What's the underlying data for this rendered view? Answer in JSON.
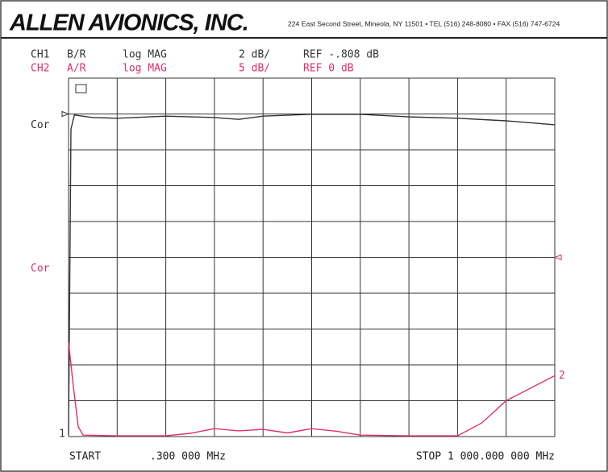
{
  "header": {
    "company": "ALLEN AVIONICS, INC.",
    "address": "224 East Second Street, Mineola, NY 11501 • TEL (516) 248-8080 • FAX (516) 747-6724"
  },
  "chart_data": {
    "type": "line",
    "xlim": [
      0,
      10
    ],
    "ylim": [
      0,
      10
    ],
    "grid_divisions": [
      10,
      10
    ],
    "start_label": "START",
    "start_freq": ".300 000 MHz",
    "stop_label": "STOP 1 000.000 000 MHz",
    "series": [
      {
        "name": "CH1",
        "measurement": "B/R",
        "format": "log MAG",
        "scale": "2 dB/",
        "reference": "REF -.808 dB",
        "trace_label": "Cor",
        "marker_label": "1",
        "color": "#333333",
        "ref_position": 9,
        "ref_side": "left",
        "x": [
          0,
          0.05,
          0.12,
          0.5,
          1,
          2,
          3,
          3.5,
          4,
          5,
          6,
          7,
          8,
          9,
          10
        ],
        "values": [
          0.05,
          8.58,
          8.97,
          8.9,
          8.88,
          8.94,
          8.9,
          8.85,
          8.94,
          8.99,
          8.99,
          8.92,
          8.88,
          8.81,
          8.7
        ]
      },
      {
        "name": "CH2",
        "measurement": "A/R",
        "format": "log MAG",
        "scale": "5 dB/",
        "reference": "REF 0 dB",
        "trace_label": "Cor",
        "marker_label": "2",
        "color": "#e0306a",
        "ref_position": 5,
        "ref_side": "right",
        "x": [
          0,
          0.1,
          0.2,
          0.3,
          1,
          2,
          2.5,
          3,
          3.5,
          4,
          4.5,
          5,
          5.5,
          6,
          7,
          8,
          8.5,
          9,
          10
        ],
        "values": [
          2.63,
          1.39,
          0.27,
          0.04,
          0.02,
          0.02,
          0.09,
          0.22,
          0.16,
          0.2,
          0.1,
          0.22,
          0.15,
          0.04,
          0.02,
          0.02,
          0.38,
          1.0,
          1.7
        ]
      }
    ]
  }
}
